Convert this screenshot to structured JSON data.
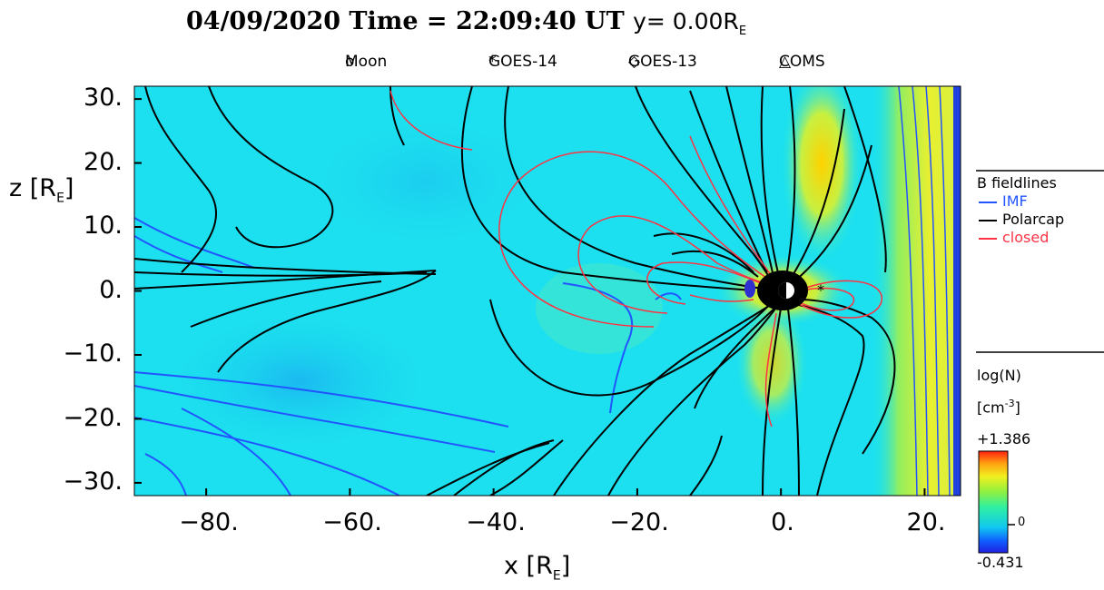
{
  "title": {
    "date": "04/09/2020",
    "time_label": "Time",
    "time_value": "22:09:40",
    "time_unit": "UT",
    "slice": "y= 0.00R",
    "slice_sub": "E"
  },
  "markers": [
    {
      "symbol": "o",
      "label": "Moon"
    },
    {
      "symbol": "*",
      "label": "GOES-14"
    },
    {
      "symbol": "◇",
      "label": "GOES-13"
    },
    {
      "symbol": "△",
      "label": "COMS"
    }
  ],
  "axes": {
    "y_label": "z [R",
    "y_label_sub": "E",
    "x_label": "x [R",
    "x_label_sub": "E",
    "y_ticks": [
      "30.",
      "20.",
      "10.",
      "0.",
      "−10.",
      "−20.",
      "−30."
    ],
    "x_ticks": [
      "−80.",
      "−60.",
      "−40.",
      "−20.",
      "0.",
      "20."
    ]
  },
  "fieldline_legend": {
    "title": "B fieldlines",
    "entries": [
      {
        "label": "IMF",
        "color": "#2255ff"
      },
      {
        "label": "Polarcap",
        "color": "#000000"
      },
      {
        "label": "closed",
        "color": "#ff3344"
      }
    ]
  },
  "colorbar": {
    "quantity": "log(N)",
    "unit_open": "[cm",
    "unit_exp": "-3",
    "unit_close": "]",
    "max_label": "+1.386",
    "zero_label": "0",
    "min_label": "-0.431"
  },
  "chart_data": {
    "type": "heatmap",
    "title": "04/09/2020 Time = 22:09:40 UT y= 0.00RE",
    "xlabel": "x [RE]",
    "ylabel": "z [RE]",
    "xlim": [
      -90,
      25
    ],
    "ylim": [
      -32,
      32
    ],
    "x_ticks": [
      -80,
      -60,
      -40,
      -20,
      0,
      20
    ],
    "y_ticks": [
      30,
      20,
      10,
      0,
      -10,
      -20,
      -30
    ],
    "colorbar_range": [
      -0.431,
      1.386
    ],
    "quantity": "log(N) [cm^-3]",
    "fieldline_types": [
      "IMF",
      "Polarcap",
      "closed"
    ]
  }
}
